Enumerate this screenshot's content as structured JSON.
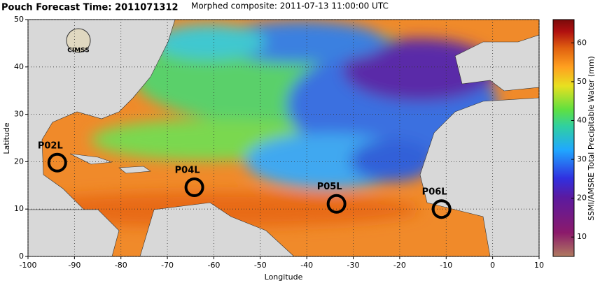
{
  "chart_data": {
    "type": "map",
    "title": "Pouch Forecast Time: 2011071312",
    "subtitle": "Morphed composite: 2011-07-13 11:00:00 UTC",
    "x_label": "Longitude",
    "y_label": "Latitude",
    "xlim": [
      -100,
      10
    ],
    "ylim": [
      0,
      50
    ],
    "xticks": [
      -100,
      -90,
      -80,
      -70,
      -60,
      -50,
      -40,
      -30,
      -20,
      -10,
      0,
      10
    ],
    "yticks": [
      0,
      10,
      20,
      30,
      40,
      50
    ],
    "grid": true,
    "logo": "CIMSS",
    "pouches": {
      "names": [
        "P02L",
        "P04L",
        "P05L",
        "P06L"
      ],
      "x": [
        -93.7,
        -64.2,
        -33.6,
        -11.0
      ],
      "y": [
        19.8,
        14.6,
        11.1,
        10.0
      ],
      "color": "#000000"
    },
    "colorbar": {
      "label": "SSMI/AMSRE Total Precipitable Water (mm)",
      "lim": [
        5,
        66
      ],
      "ticks": [
        10,
        20,
        30,
        40,
        50,
        60
      ]
    }
  }
}
